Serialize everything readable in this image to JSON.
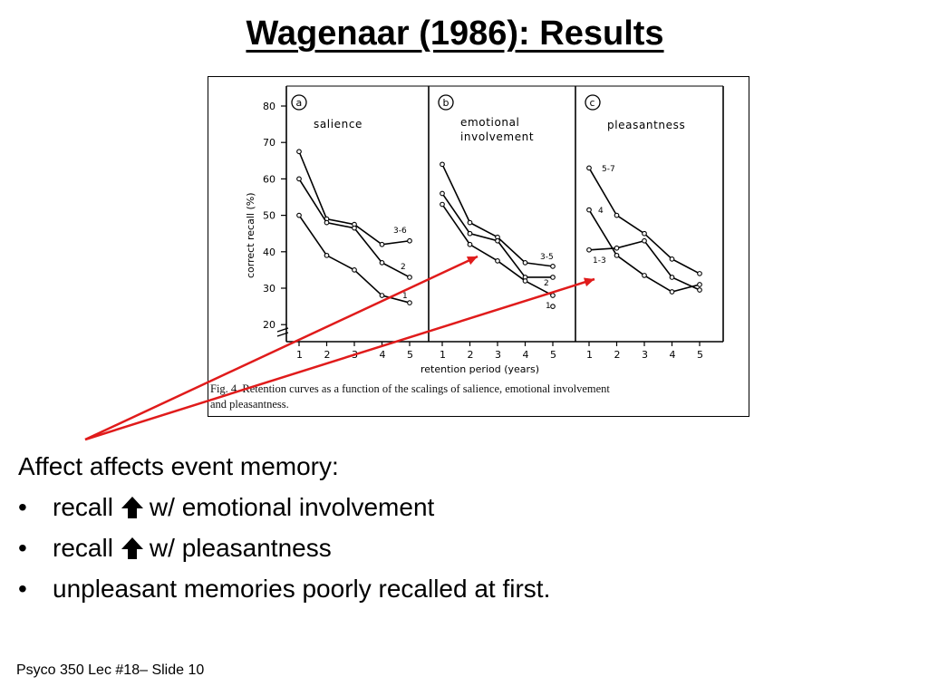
{
  "slide": {
    "title": "Wagenaar (1986): Results",
    "footer": "Psyco 350 Lec #18– Slide 10"
  },
  "body": {
    "heading": "Affect affects event memory:",
    "bullets": [
      {
        "before": "recall",
        "icon": "up-arrow-icon",
        "after": "w/ emotional involvement"
      },
      {
        "before": "recall",
        "icon": "up-arrow-icon",
        "after": "w/ pleasantness"
      },
      {
        "before": "unpleasant memories poorly recalled at first.",
        "icon": null,
        "after": ""
      }
    ],
    "bullet_symbol": "•"
  },
  "arrow_color": "#e01b1b",
  "figure": {
    "caption_line1": "Fig. 4.  Retention curves as a function of the scalings of salience, emotional involvement",
    "caption_line2": "and pleasantness.",
    "ylabel": "correct recall  (%)",
    "xlabel": "retention period  (years)",
    "y_ticks": [
      "80",
      "70",
      "60",
      "50",
      "40",
      "30",
      "20"
    ],
    "x_ticks": [
      "1",
      "2",
      "3",
      "4",
      "5"
    ]
  },
  "chart_data": [
    {
      "type": "line",
      "panel_letter": "a",
      "title": "salience",
      "x": [
        1,
        2,
        3,
        4,
        5
      ],
      "ylim": [
        17,
        82
      ],
      "series": [
        {
          "name": "3-6",
          "values": [
            67.5,
            49,
            47.5,
            42,
            43
          ]
        },
        {
          "name": "2",
          "values": [
            60,
            48,
            46.5,
            37,
            33
          ]
        },
        {
          "name": "1",
          "values": [
            50,
            39,
            35,
            28,
            26
          ]
        }
      ]
    },
    {
      "type": "line",
      "panel_letter": "b",
      "title": "emotional involvement",
      "x": [
        1,
        2,
        3,
        4,
        5
      ],
      "ylim": [
        17,
        82
      ],
      "series": [
        {
          "name": "3-5",
          "values": [
            64,
            48,
            44,
            37,
            36
          ]
        },
        {
          "name": "",
          "values": [
            56,
            45,
            43,
            33,
            33
          ]
        },
        {
          "name": "2",
          "values": [
            53,
            42,
            37.5,
            32,
            28
          ]
        },
        {
          "name": "1",
          "values": [
            null,
            null,
            null,
            null,
            25
          ]
        }
      ]
    },
    {
      "type": "line",
      "panel_letter": "c",
      "title": "pleasantness",
      "x": [
        1,
        2,
        3,
        4,
        5
      ],
      "ylim": [
        17,
        82
      ],
      "series": [
        {
          "name": "5-7",
          "values": [
            63,
            50,
            45,
            38,
            34
          ]
        },
        {
          "name": "4",
          "values": [
            51.5,
            39,
            33.5,
            29,
            31
          ]
        },
        {
          "name": "1-3",
          "values": [
            40.5,
            41,
            43,
            33,
            29.5
          ]
        }
      ]
    }
  ]
}
